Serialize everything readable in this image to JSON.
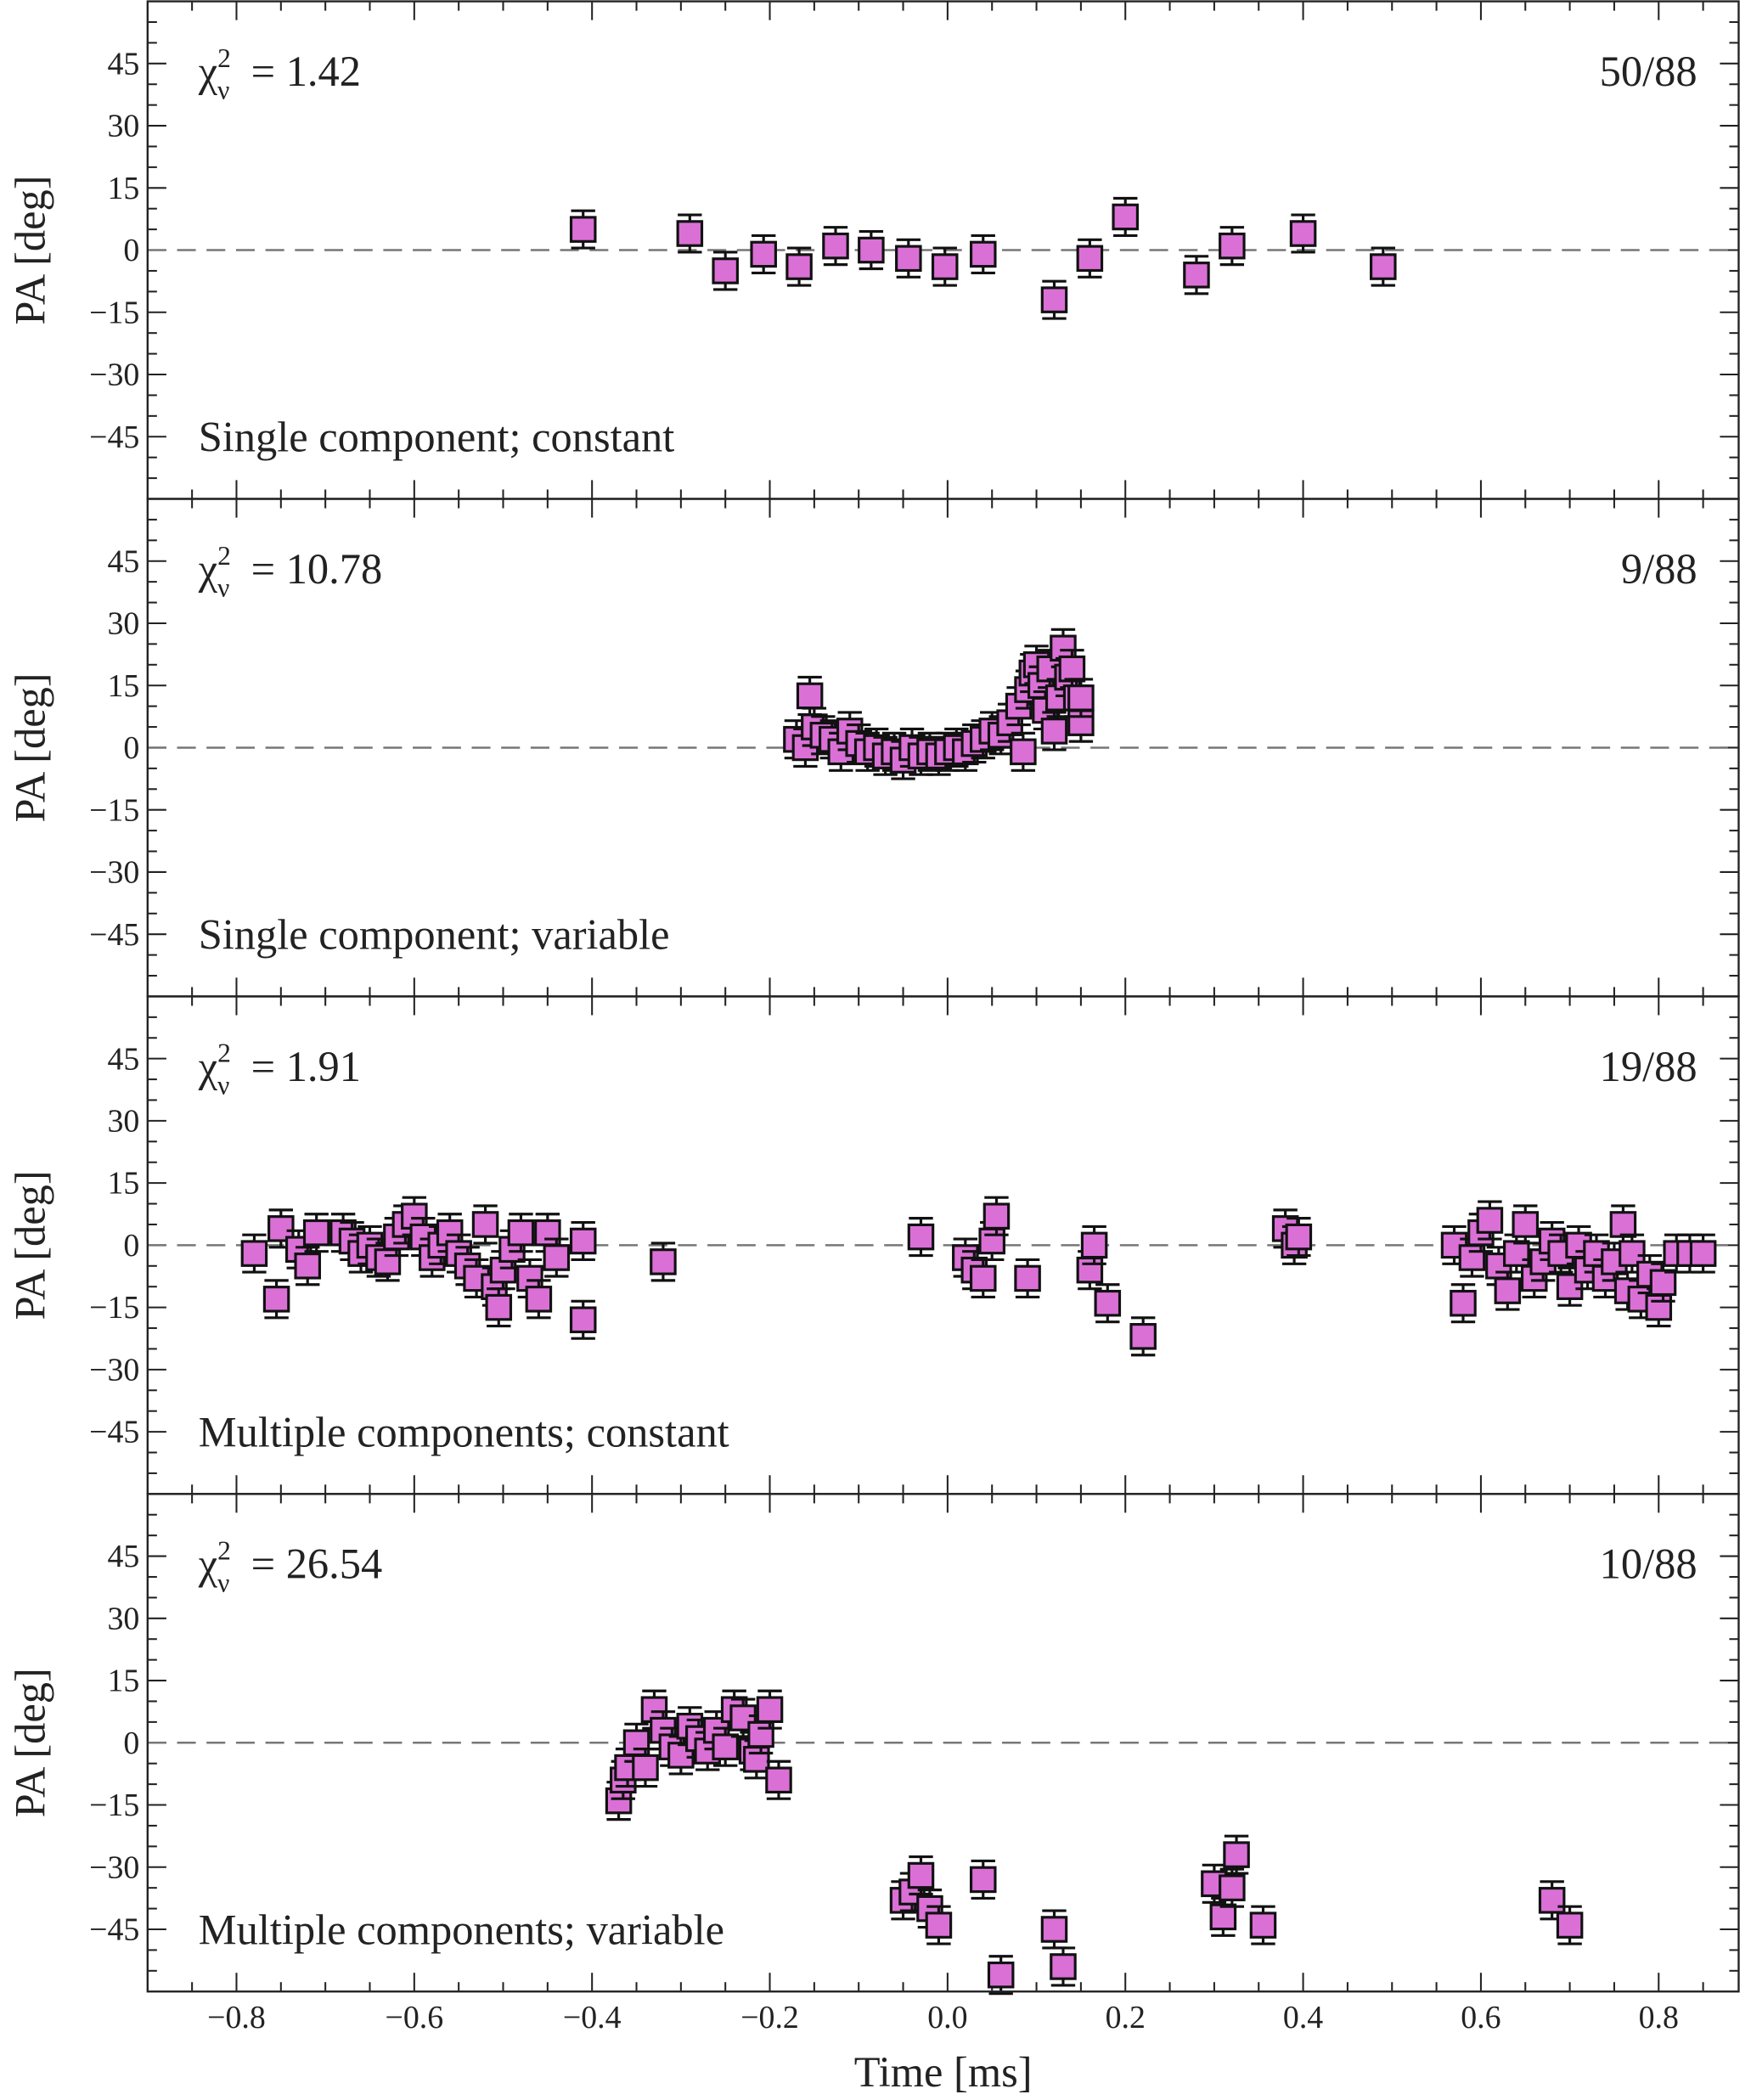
{
  "chart_data": [
    {
      "type": "scatter",
      "chi2_label": "χ",
      "chi2_value": "= 1.42",
      "count": "50/88",
      "annotation": "Single component; constant",
      "ylabel": "PA [deg]",
      "ylim": [
        -60,
        60
      ],
      "points": [
        [
          -0.41,
          5
        ],
        [
          -0.29,
          4
        ],
        [
          -0.25,
          -5
        ],
        [
          -0.207,
          -1
        ],
        [
          -0.167,
          -4
        ],
        [
          -0.126,
          1
        ],
        [
          -0.086,
          0
        ],
        [
          -0.044,
          -2
        ],
        [
          -0.003,
          -4
        ],
        [
          0.04,
          -1
        ],
        [
          0.12,
          -12
        ],
        [
          0.16,
          -2
        ],
        [
          0.2,
          8
        ],
        [
          0.28,
          -6
        ],
        [
          0.32,
          1
        ],
        [
          0.4,
          4
        ],
        [
          0.49,
          -4
        ]
      ]
    },
    {
      "type": "scatter",
      "chi2_label": "χ",
      "chi2_value": "= 10.78",
      "count": "9/88",
      "annotation": "Single component; variable",
      "ylabel": "PA [deg]",
      "ylim": [
        -60,
        60
      ],
      "points": [
        [
          -0.17,
          2
        ],
        [
          -0.16,
          0
        ],
        [
          -0.155,
          12.5
        ],
        [
          -0.15,
          5
        ],
        [
          -0.14,
          3
        ],
        [
          -0.13,
          2
        ],
        [
          -0.12,
          -1
        ],
        [
          -0.11,
          4
        ],
        [
          -0.1,
          1
        ],
        [
          -0.09,
          -1
        ],
        [
          -0.08,
          0
        ],
        [
          -0.07,
          -2
        ],
        [
          -0.06,
          -1
        ],
        [
          -0.05,
          -3
        ],
        [
          -0.04,
          0
        ],
        [
          -0.03,
          -2
        ],
        [
          -0.02,
          -1
        ],
        [
          -0.01,
          -2
        ],
        [
          0,
          -1
        ],
        [
          0.01,
          0
        ],
        [
          0.02,
          -1
        ],
        [
          0.03,
          1
        ],
        [
          0.04,
          2
        ],
        [
          0.05,
          4
        ],
        [
          0.06,
          3
        ],
        [
          0.07,
          6
        ],
        [
          0.08,
          10
        ],
        [
          0.085,
          -1
        ],
        [
          0.09,
          14
        ],
        [
          0.095,
          18
        ],
        [
          0.1,
          20
        ],
        [
          0.105,
          15
        ],
        [
          0.11,
          9
        ],
        [
          0.115,
          19
        ],
        [
          0.12,
          4
        ],
        [
          0.125,
          12
        ],
        [
          0.13,
          24
        ],
        [
          0.135,
          17
        ],
        [
          0.14,
          19
        ],
        [
          0.145,
          12
        ],
        [
          0.15,
          6
        ],
        [
          0.15,
          12
        ]
      ]
    },
    {
      "type": "scatter",
      "chi2_label": "χ",
      "chi2_value": "= 1.91",
      "count": "19/88",
      "annotation": "Multiple components; constant",
      "ylabel": "PA [deg]",
      "ylim": [
        -60,
        60
      ],
      "points": [
        [
          -0.78,
          -2
        ],
        [
          -0.755,
          -13
        ],
        [
          -0.75,
          4
        ],
        [
          -0.73,
          -1
        ],
        [
          -0.72,
          -5
        ],
        [
          -0.71,
          3
        ],
        [
          -0.68,
          3
        ],
        [
          -0.67,
          1
        ],
        [
          -0.66,
          -2
        ],
        [
          -0.65,
          0
        ],
        [
          -0.64,
          -3
        ],
        [
          -0.63,
          -4
        ],
        [
          -0.62,
          2
        ],
        [
          -0.61,
          5
        ],
        [
          -0.6,
          7
        ],
        [
          -0.59,
          2
        ],
        [
          -0.58,
          -3
        ],
        [
          -0.57,
          0
        ],
        [
          -0.56,
          3
        ],
        [
          -0.55,
          -2
        ],
        [
          -0.54,
          -5
        ],
        [
          -0.53,
          -8
        ],
        [
          -0.52,
          5
        ],
        [
          -0.51,
          -10
        ],
        [
          -0.505,
          -15
        ],
        [
          -0.5,
          -6
        ],
        [
          -0.49,
          -1
        ],
        [
          -0.48,
          3
        ],
        [
          -0.47,
          -8
        ],
        [
          -0.46,
          -13
        ],
        [
          -0.45,
          3
        ],
        [
          -0.44,
          -3
        ],
        [
          -0.41,
          1
        ],
        [
          -0.41,
          -18
        ],
        [
          -0.32,
          -4
        ],
        [
          -0.03,
          2
        ],
        [
          0.02,
          -3
        ],
        [
          0.03,
          -6
        ],
        [
          0.04,
          -8
        ],
        [
          0.05,
          1
        ],
        [
          0.055,
          7
        ],
        [
          0.09,
          -8
        ],
        [
          0.16,
          -6
        ],
        [
          0.165,
          0
        ],
        [
          0.18,
          -14
        ],
        [
          0.22,
          -22
        ],
        [
          0.38,
          4
        ],
        [
          0.39,
          0
        ],
        [
          0.395,
          2
        ],
        [
          0.57,
          0
        ],
        [
          0.58,
          -14
        ],
        [
          0.59,
          -3
        ],
        [
          0.6,
          3
        ],
        [
          0.61,
          6
        ],
        [
          0.62,
          -5
        ],
        [
          0.63,
          -11
        ],
        [
          0.64,
          -2
        ],
        [
          0.65,
          5
        ],
        [
          0.66,
          -8
        ],
        [
          0.67,
          -4
        ],
        [
          0.68,
          1
        ],
        [
          0.69,
          -2
        ],
        [
          0.7,
          -10
        ],
        [
          0.71,
          0
        ],
        [
          0.72,
          -6
        ],
        [
          0.73,
          -2
        ],
        [
          0.74,
          -8
        ],
        [
          0.75,
          -4
        ],
        [
          0.76,
          5
        ],
        [
          0.765,
          -11
        ],
        [
          0.77,
          -2
        ],
        [
          0.78,
          -13
        ],
        [
          0.79,
          -7
        ],
        [
          0.8,
          -15
        ],
        [
          0.805,
          -9
        ],
        [
          0.82,
          -2
        ],
        [
          0.835,
          -2
        ],
        [
          0.85,
          -2
        ]
      ]
    },
    {
      "type": "scatter",
      "chi2_label": "χ",
      "chi2_value": "= 26.54",
      "count": "10/88",
      "annotation": "Multiple components; variable",
      "ylabel": "PA [deg]",
      "ylim": [
        -60,
        60
      ],
      "points": [
        [
          -0.37,
          -14
        ],
        [
          -0.365,
          -9
        ],
        [
          -0.36,
          -6
        ],
        [
          -0.35,
          0
        ],
        [
          -0.34,
          -6
        ],
        [
          -0.33,
          8
        ],
        [
          -0.32,
          3
        ],
        [
          -0.31,
          -1
        ],
        [
          -0.3,
          -3
        ],
        [
          -0.29,
          4
        ],
        [
          -0.28,
          1
        ],
        [
          -0.27,
          -2
        ],
        [
          -0.26,
          3
        ],
        [
          -0.25,
          -1
        ],
        [
          -0.24,
          8
        ],
        [
          -0.23,
          6
        ],
        [
          -0.22,
          -2
        ],
        [
          -0.215,
          -4
        ],
        [
          -0.21,
          2
        ],
        [
          -0.2,
          8
        ],
        [
          -0.19,
          -9
        ],
        [
          -0.05,
          -38
        ],
        [
          -0.04,
          -36
        ],
        [
          -0.03,
          -32
        ],
        [
          -0.02,
          -40
        ],
        [
          -0.01,
          -44
        ],
        [
          0.04,
          -33
        ],
        [
          0.06,
          -56
        ],
        [
          0.12,
          -45
        ],
        [
          0.13,
          -54
        ],
        [
          0.3,
          -34
        ],
        [
          0.31,
          -42
        ],
        [
          0.32,
          -35
        ],
        [
          0.325,
          -27
        ],
        [
          0.355,
          -44
        ],
        [
          0.68,
          -38
        ],
        [
          0.7,
          -44
        ]
      ]
    }
  ],
  "shared": {
    "xlabel": "Time [ms]",
    "xlim": [
      -0.9,
      0.89
    ],
    "x_ticks": [
      -0.8,
      -0.6,
      -0.4,
      -0.2,
      0.0,
      0.2,
      0.4,
      0.6,
      0.8
    ],
    "x_tick_labels": [
      "−0.8",
      "−0.6",
      "−0.4",
      "−0.2",
      "0.0",
      "0.2",
      "0.4",
      "0.6",
      "0.8"
    ],
    "y_ticks": [
      -45,
      -30,
      -15,
      0,
      15,
      30,
      45
    ],
    "y_tick_labels": [
      "−45",
      "−30",
      "−15",
      "0",
      "15",
      "30",
      "45"
    ],
    "chi2_sup": "2",
    "chi2_sub": "ν",
    "marker": "square",
    "error_deg": 4.5,
    "marker_color": "#DA70D6",
    "reference_line_y": 0,
    "grid": false
  }
}
